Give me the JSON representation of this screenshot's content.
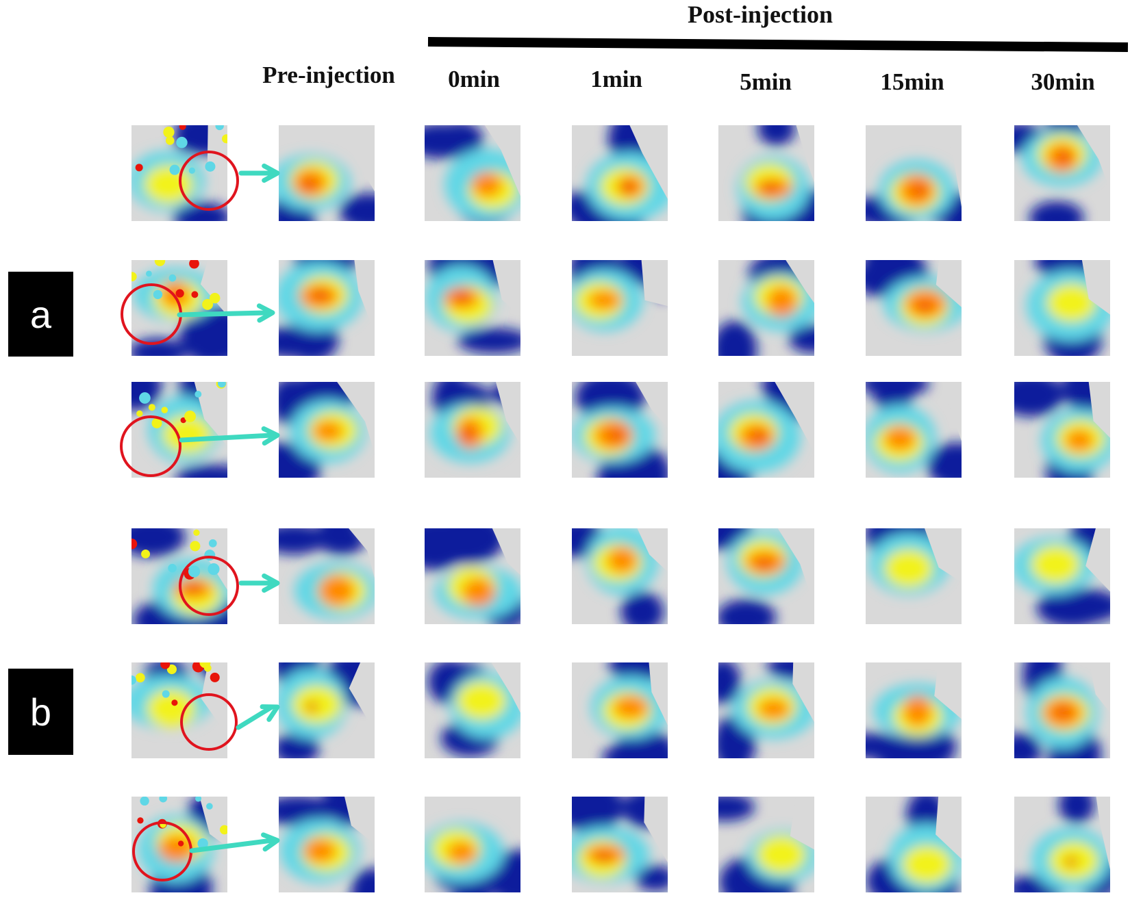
{
  "header": {
    "post_injection": "Post-injection",
    "pre_injection": "Pre-injection",
    "timepoints": [
      "0min",
      "1min",
      "5min",
      "15min",
      "30min"
    ]
  },
  "groups": [
    {
      "label": "a"
    },
    {
      "label": "b"
    }
  ],
  "colors": {
    "background": "#d9d9d9",
    "cold": "#0b1f9c",
    "cyan": "#5fd7e6",
    "yellow": "#f2f21a",
    "orange": "#ff8a00",
    "hot": "#e8140a",
    "circle": "#e0141e",
    "arrow": "#3fd9c0"
  }
}
